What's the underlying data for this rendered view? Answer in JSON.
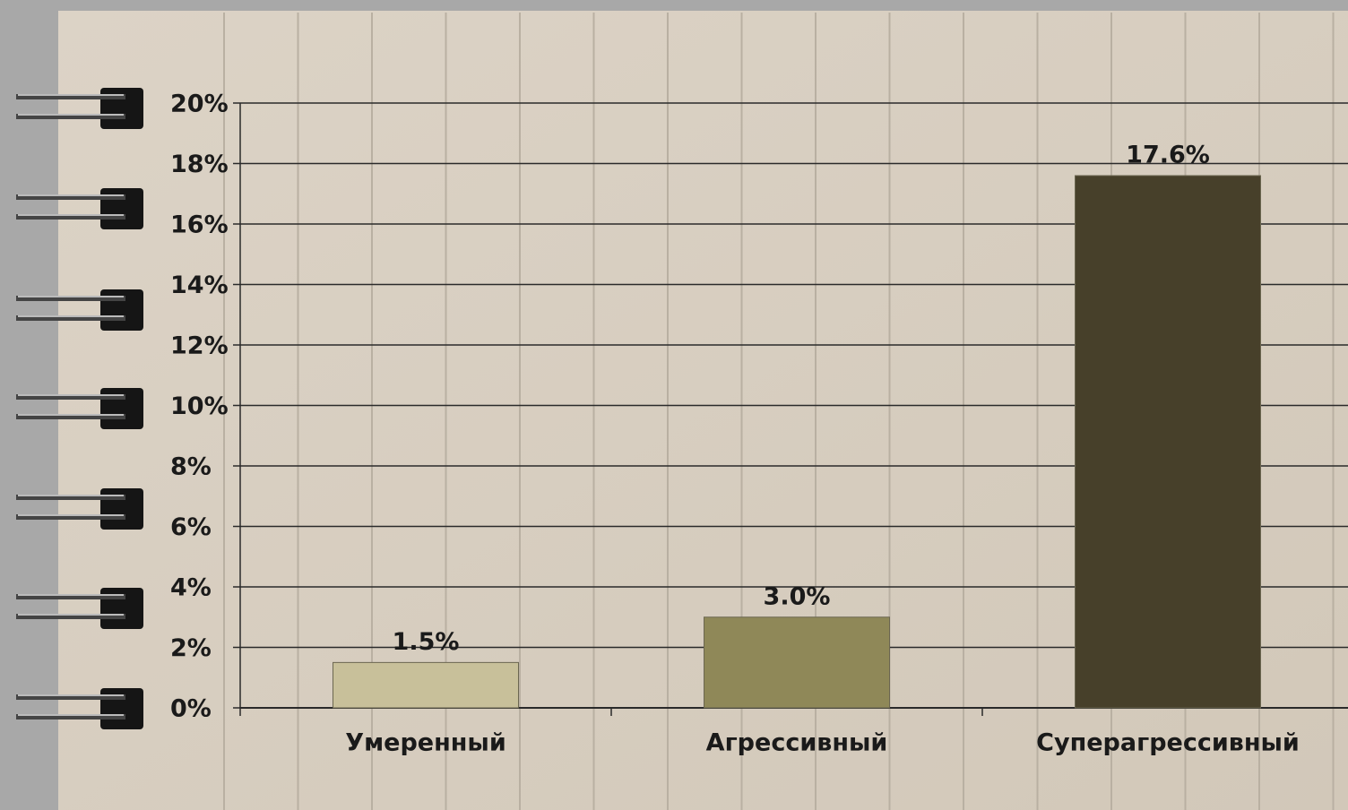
{
  "chart_data": {
    "type": "bar",
    "categories": [
      "Умеренный",
      "Агрессивный",
      "Суперагрессивный"
    ],
    "values": [
      1.5,
      3.0,
      17.6
    ],
    "value_labels": [
      "1.5%",
      "3.0%",
      "17.6%"
    ],
    "colors": [
      "#c8c09a",
      "#8f8858",
      "#47402a"
    ],
    "ylim": [
      0,
      20
    ],
    "yticks": [
      {
        "value": 0,
        "label": "0%"
      },
      {
        "value": 2,
        "label": "2%"
      },
      {
        "value": 4,
        "label": "4%"
      },
      {
        "value": 6,
        "label": "6%"
      },
      {
        "value": 8,
        "label": "8%"
      },
      {
        "value": 10,
        "label": "10%"
      },
      {
        "value": 12,
        "label": "12%"
      },
      {
        "value": 14,
        "label": "14%"
      },
      {
        "value": 16,
        "label": "16%"
      },
      {
        "value": 18,
        "label": "18%"
      },
      {
        "value": 20,
        "label": "20%"
      }
    ],
    "grid": true
  }
}
